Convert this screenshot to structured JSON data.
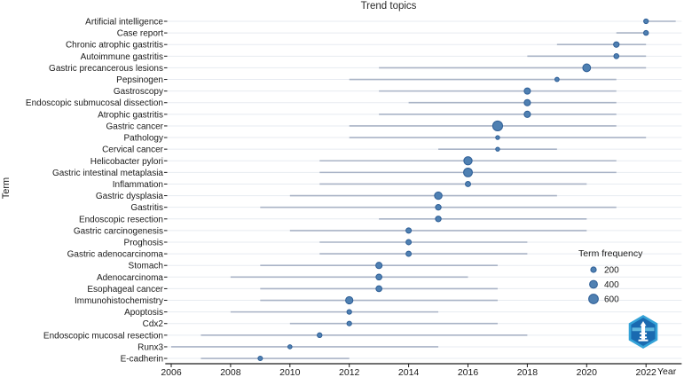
{
  "style": {
    "dot_fill": "#4f80b2",
    "dot_stroke": "#2e5e96",
    "range_line": "#a9b3c6",
    "gridline": "#e7ebf1",
    "axis_color": "#1a1a1a",
    "text_color": "#1a1a1a",
    "logo_outer": "#35a3d8",
    "logo_inner": "#1a6ab0"
  },
  "chart_data": {
    "type": "scatter",
    "subtype": "trend-topics-dot-range",
    "title": "Trend topics",
    "xlabel": "Year",
    "ylabel": "Term",
    "x_ticks": [
      2006,
      2008,
      2010,
      2012,
      2014,
      2016,
      2018,
      2020,
      2022
    ],
    "x_domain": [
      2005.8,
      2023.2
    ],
    "grid": "horizontal-only",
    "legend": {
      "title": "Term frequency",
      "sizes": [
        200,
        400,
        600
      ],
      "position": "inside-right-bottom"
    },
    "terms": [
      {
        "term": "Artificial intelligence",
        "start": 2022,
        "peak": 2022,
        "end": 2023,
        "frequency": 140
      },
      {
        "term": "Case report",
        "start": 2021,
        "peak": 2022,
        "end": 2022,
        "frequency": 150
      },
      {
        "term": "Chronic atrophic gastritis",
        "start": 2019,
        "peak": 2021,
        "end": 2022,
        "frequency": 200
      },
      {
        "term": "Autoimmune gastritis",
        "start": 2018,
        "peak": 2021,
        "end": 2022,
        "frequency": 160
      },
      {
        "term": "Gastric precancerous lesions",
        "start": 2013,
        "peak": 2020,
        "end": 2022,
        "frequency": 400
      },
      {
        "term": "Pepsinogen",
        "start": 2012,
        "peak": 2019,
        "end": 2021,
        "frequency": 120
      },
      {
        "term": "Gastroscopy",
        "start": 2013,
        "peak": 2018,
        "end": 2021,
        "frequency": 260
      },
      {
        "term": "Endoscopic submucosal dissection",
        "start": 2014,
        "peak": 2018,
        "end": 2021,
        "frequency": 260
      },
      {
        "term": "Atrophic gastritis",
        "start": 2013,
        "peak": 2018,
        "end": 2021,
        "frequency": 260
      },
      {
        "term": "Gastric cancer",
        "start": 2012,
        "peak": 2017,
        "end": 2021,
        "frequency": 640
      },
      {
        "term": "Pathology",
        "start": 2012,
        "peak": 2017,
        "end": 2022,
        "frequency": 100
      },
      {
        "term": "Cervical cancer",
        "start": 2015,
        "peak": 2017,
        "end": 2019,
        "frequency": 100
      },
      {
        "term": "Helicobacter pylori",
        "start": 2011,
        "peak": 2016,
        "end": 2021,
        "frequency": 450
      },
      {
        "term": "Gastric intestinal metaplasia",
        "start": 2011,
        "peak": 2016,
        "end": 2021,
        "frequency": 500
      },
      {
        "term": "Inflammation",
        "start": 2011,
        "peak": 2016,
        "end": 2020,
        "frequency": 180
      },
      {
        "term": "Gastric dysplasia",
        "start": 2010,
        "peak": 2015,
        "end": 2019,
        "frequency": 370
      },
      {
        "term": "Gastritis",
        "start": 2009,
        "peak": 2015,
        "end": 2021,
        "frequency": 210
      },
      {
        "term": "Endoscopic resection",
        "start": 2013,
        "peak": 2015,
        "end": 2020,
        "frequency": 210
      },
      {
        "term": "Gastric carcinogenesis",
        "start": 2010,
        "peak": 2014,
        "end": 2020,
        "frequency": 190
      },
      {
        "term": "Proghosis",
        "start": 2011,
        "peak": 2014,
        "end": 2018,
        "frequency": 180
      },
      {
        "term": "Gastric adenocarcinoma",
        "start": 2011,
        "peak": 2014,
        "end": 2018,
        "frequency": 180
      },
      {
        "term": "Stomach",
        "start": 2009,
        "peak": 2013,
        "end": 2017,
        "frequency": 260
      },
      {
        "term": "Adenocarcinoma",
        "start": 2008,
        "peak": 2013,
        "end": 2016,
        "frequency": 230
      },
      {
        "term": "Esophageal cancer",
        "start": 2009,
        "peak": 2013,
        "end": 2017,
        "frequency": 230
      },
      {
        "term": "Immunohistochemistry",
        "start": 2009,
        "peak": 2012,
        "end": 2017,
        "frequency": 350
      },
      {
        "term": "Apoptosis",
        "start": 2008,
        "peak": 2012,
        "end": 2015,
        "frequency": 140
      },
      {
        "term": "Cdx2",
        "start": 2010,
        "peak": 2012,
        "end": 2017,
        "frequency": 140
      },
      {
        "term": "Endoscopic mucosal resection",
        "start": 2007,
        "peak": 2011,
        "end": 2018,
        "frequency": 150
      },
      {
        "term": "Runx3",
        "start": 2006,
        "peak": 2010,
        "end": 2015,
        "frequency": 110
      },
      {
        "term": "E-cadherin",
        "start": 2007,
        "peak": 2009,
        "end": 2012,
        "frequency": 130
      }
    ]
  }
}
